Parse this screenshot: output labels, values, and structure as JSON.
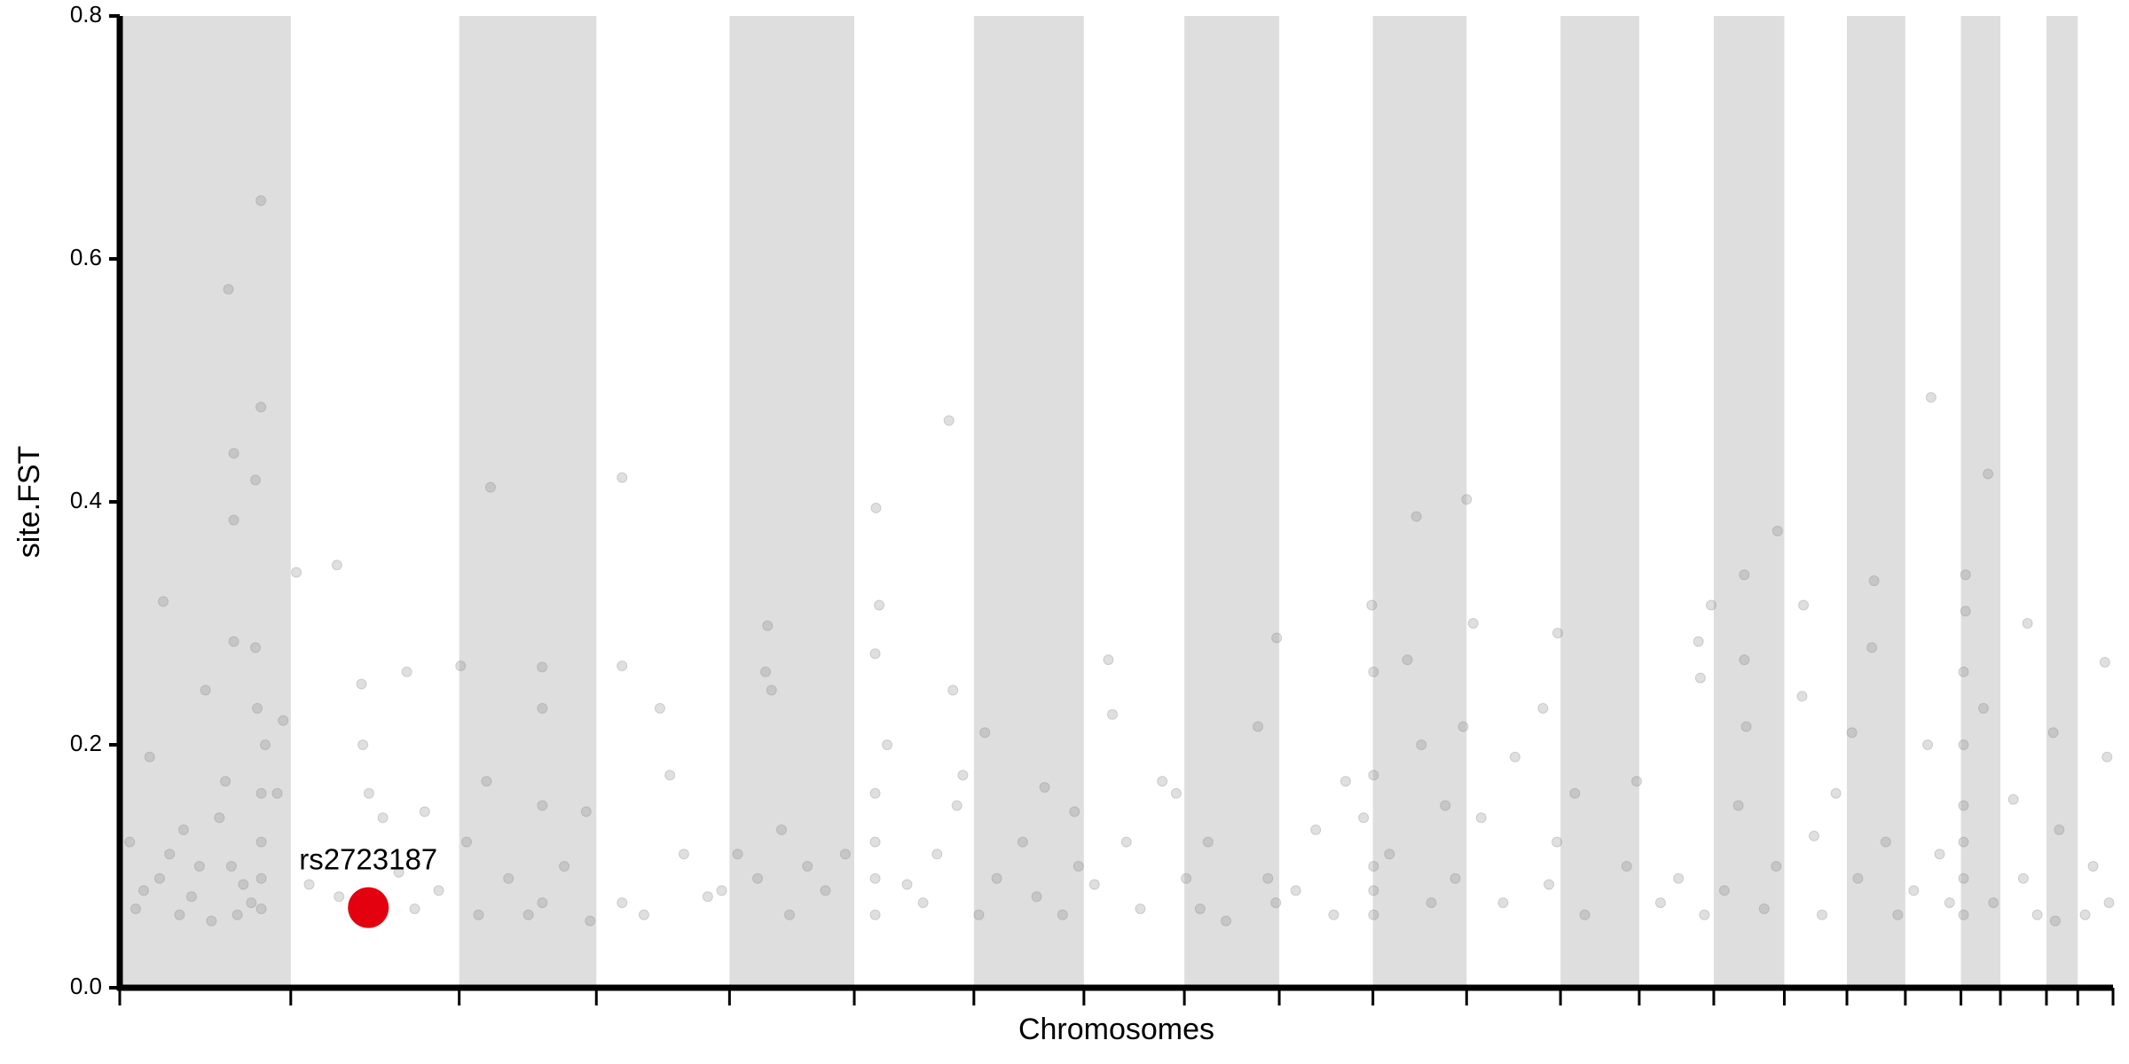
{
  "chart_data": {
    "type": "scatter",
    "x_label": "Chromosomes",
    "y_label": "site.FST",
    "xlim": [
      0,
      100
    ],
    "ylim": [
      0,
      0.8
    ],
    "yticks": [
      {
        "value": 0,
        "label": "0.0"
      },
      0.2,
      0.4,
      0.6,
      0.8
    ],
    "xticks": [
      0,
      8.58,
      17.03,
      23.91,
      30.59,
      36.85,
      42.85,
      48.37,
      53.41,
      58.17,
      62.87,
      67.57,
      72.28,
      76.23,
      79.97,
      83.51,
      86.65,
      89.58,
      92.37,
      94.35,
      96.66,
      98.23,
      100
    ],
    "band_color": "#dedede",
    "series": [
      {
        "color": "#808080",
        "x": [
          5.45,
          7.08,
          7.08,
          5.72,
          6.81,
          5.72,
          5.72,
          6.81,
          2.18,
          8.86,
          10.9,
          12.13,
          18.6,
          25.2,
          21.19,
          32.5,
          37.94,
          41.6,
          65.05,
          67.57,
          83.17,
          90.87,
          93.73,
          88.01,
          95.71,
          58.04,
          72.14,
          62.81,
          99.59,
          79.84,
          84.47,
          0.5,
          0.8,
          1.2,
          1.5,
          2.0,
          2.5,
          3.0,
          3.2,
          3.6,
          4.0,
          4.3,
          4.6,
          5.0,
          5.3,
          5.6,
          5.9,
          6.2,
          6.6,
          6.9,
          7.1,
          7.1,
          7.1,
          7.1,
          7.3,
          7.9,
          8.2,
          9.5,
          11.0,
          12.2,
          12.5,
          13.2,
          14.0,
          14.4,
          14.8,
          15.3,
          16.0,
          17.1,
          17.4,
          18.0,
          18.4,
          19.5,
          20.5,
          21.2,
          21.2,
          21.2,
          22.3,
          23.4,
          23.6,
          25.2,
          25.2,
          26.3,
          27.1,
          27.6,
          28.3,
          29.5,
          30.2,
          31.0,
          32.0,
          32.4,
          32.7,
          33.2,
          33.6,
          34.5,
          35.4,
          36.4,
          37.9,
          37.9,
          37.9,
          37.9,
          37.9,
          38.1,
          38.5,
          39.5,
          40.3,
          41.0,
          41.8,
          42.0,
          42.3,
          43.1,
          43.4,
          44.0,
          45.3,
          46.0,
          46.4,
          47.3,
          47.9,
          48.1,
          48.9,
          49.6,
          49.8,
          50.5,
          51.2,
          52.3,
          53.0,
          53.5,
          54.2,
          54.6,
          55.5,
          57.1,
          57.6,
          58.0,
          59.0,
          60.0,
          60.9,
          61.5,
          62.4,
          62.9,
          62.9,
          62.9,
          62.9,
          62.9,
          63.7,
          64.6,
          65.3,
          65.8,
          66.5,
          67.0,
          67.4,
          67.9,
          68.3,
          69.4,
          70.0,
          71.4,
          71.7,
          72.1,
          73.0,
          73.5,
          75.6,
          76.1,
          77.3,
          78.2,
          79.2,
          79.3,
          79.5,
          80.5,
          81.2,
          81.5,
          81.5,
          81.6,
          82.5,
          83.1,
          84.4,
          85.0,
          85.4,
          86.1,
          86.9,
          87.2,
          87.9,
          88.6,
          89.2,
          90.0,
          90.7,
          91.3,
          91.8,
          92.5,
          92.5,
          92.5,
          92.5,
          92.5,
          92.5,
          92.6,
          92.6,
          93.5,
          94.0,
          95.0,
          95.5,
          96.2,
          97.0,
          97.1,
          97.3,
          98.6,
          99.0,
          99.7,
          99.8
        ],
        "values": [
          0.575,
          0.648,
          0.478,
          0.44,
          0.418,
          0.385,
          0.285,
          0.28,
          0.318,
          0.342,
          0.348,
          0.25,
          0.412,
          0.42,
          0.264,
          0.298,
          0.395,
          0.467,
          0.388,
          0.402,
          0.376,
          0.486,
          0.423,
          0.335,
          0.3,
          0.288,
          0.292,
          0.315,
          0.268,
          0.315,
          0.315,
          0.12,
          0.065,
          0.08,
          0.19,
          0.09,
          0.11,
          0.06,
          0.13,
          0.075,
          0.1,
          0.245,
          0.055,
          0.14,
          0.17,
          0.1,
          0.06,
          0.085,
          0.07,
          0.23,
          0.065,
          0.09,
          0.12,
          0.16,
          0.2,
          0.16,
          0.22,
          0.085,
          0.075,
          0.2,
          0.16,
          0.14,
          0.095,
          0.26,
          0.065,
          0.145,
          0.08,
          0.265,
          0.12,
          0.06,
          0.17,
          0.09,
          0.06,
          0.23,
          0.15,
          0.07,
          0.1,
          0.145,
          0.055,
          0.07,
          0.265,
          0.06,
          0.23,
          0.175,
          0.11,
          0.075,
          0.08,
          0.11,
          0.09,
          0.26,
          0.245,
          0.13,
          0.06,
          0.1,
          0.08,
          0.11,
          0.06,
          0.09,
          0.12,
          0.16,
          0.275,
          0.315,
          0.2,
          0.085,
          0.07,
          0.11,
          0.245,
          0.15,
          0.175,
          0.06,
          0.21,
          0.09,
          0.12,
          0.075,
          0.165,
          0.06,
          0.145,
          0.1,
          0.085,
          0.27,
          0.225,
          0.12,
          0.065,
          0.17,
          0.16,
          0.09,
          0.065,
          0.12,
          0.055,
          0.215,
          0.09,
          0.07,
          0.08,
          0.13,
          0.06,
          0.17,
          0.14,
          0.06,
          0.08,
          0.1,
          0.175,
          0.26,
          0.11,
          0.27,
          0.2,
          0.07,
          0.15,
          0.09,
          0.215,
          0.3,
          0.14,
          0.07,
          0.19,
          0.23,
          0.085,
          0.12,
          0.16,
          0.06,
          0.1,
          0.17,
          0.07,
          0.09,
          0.285,
          0.255,
          0.06,
          0.08,
          0.15,
          0.34,
          0.27,
          0.215,
          0.065,
          0.1,
          0.24,
          0.125,
          0.06,
          0.16,
          0.21,
          0.09,
          0.28,
          0.12,
          0.06,
          0.08,
          0.2,
          0.11,
          0.07,
          0.06,
          0.09,
          0.12,
          0.15,
          0.2,
          0.26,
          0.34,
          0.31,
          0.23,
          0.07,
          0.155,
          0.09,
          0.06,
          0.21,
          0.055,
          0.13,
          0.06,
          0.1,
          0.19,
          0.07
        ]
      }
    ],
    "annotation": {
      "label": "rs2723187",
      "x": 12.47,
      "y": 0.066,
      "color": "#e3000f"
    }
  }
}
